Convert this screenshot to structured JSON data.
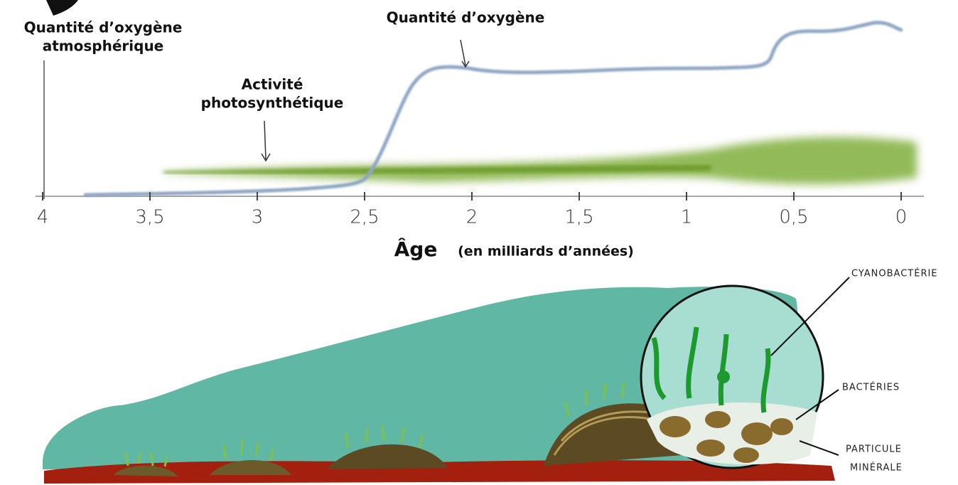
{
  "y_axis_label": [
    "Quantité d’oxygène",
    "atmosphérique"
  ],
  "annotations": {
    "oxygen": "Quantité d’oxygène",
    "photosynthesis": [
      "Activité",
      "photosynthétique"
    ]
  },
  "x_axis": {
    "title": "Âge",
    "unit": "(en milliards d’années)",
    "lim": [
      4,
      0
    ],
    "ticks": [
      4,
      {
        "value": 3.5,
        "label": "3,5"
      },
      3,
      {
        "value": 2.5,
        "label": "2,5"
      },
      2,
      {
        "value": 1.5,
        "label": "1,5"
      },
      1,
      {
        "value": 0.5,
        "label": "0,5"
      },
      0
    ]
  },
  "illustration": {
    "cyanobacteria": "CYANOBACTÉRIE",
    "bacteria": "BACTÉRIES",
    "mineral_particle": [
      "PARTICULE",
      "MINÉRALE"
    ]
  }
}
